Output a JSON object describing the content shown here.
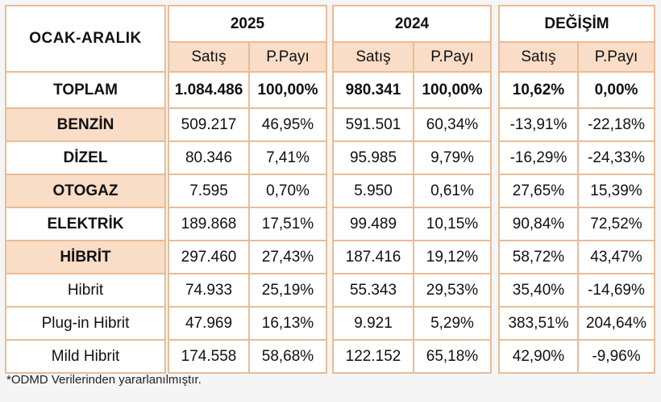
{
  "chart_data": {
    "type": "table",
    "title": "OCAK-ARALIK",
    "groups": [
      "2025",
      "2024",
      "DEĞİŞİM"
    ],
    "subheaders": [
      "Satış",
      "P.Payı"
    ],
    "rows": [
      {
        "label": "TOPLAM",
        "values": [
          "1.084.486",
          "100,00%",
          "980.341",
          "100,00%",
          "10,62%",
          "0,00%"
        ]
      },
      {
        "label": "BENZİN",
        "values": [
          "509.217",
          "46,95%",
          "591.501",
          "60,34%",
          "-13,91%",
          "-22,18%"
        ]
      },
      {
        "label": "DİZEL",
        "values": [
          "80.346",
          "7,41%",
          "95.985",
          "9,79%",
          "-16,29%",
          "-24,33%"
        ]
      },
      {
        "label": "OTOGAZ",
        "values": [
          "7.595",
          "0,70%",
          "5.950",
          "0,61%",
          "27,65%",
          "15,39%"
        ]
      },
      {
        "label": "ELEKTRİK",
        "values": [
          "189.868",
          "17,51%",
          "99.489",
          "10,15%",
          "90,84%",
          "72,52%"
        ]
      },
      {
        "label": "HİBRİT",
        "values": [
          "297.460",
          "27,43%",
          "187.416",
          "19,12%",
          "58,72%",
          "43,47%"
        ]
      },
      {
        "label": "Hibrit",
        "values": [
          "74.933",
          "25,19%",
          "55.343",
          "29,53%",
          "35,40%",
          "-14,69%"
        ]
      },
      {
        "label": "Plug-in Hibrit",
        "values": [
          "47.969",
          "16,13%",
          "9.921",
          "5,29%",
          "383,51%",
          "204,64%"
        ]
      },
      {
        "label": "Mild Hibrit",
        "values": [
          "174.558",
          "58,68%",
          "122.152",
          "65,18%",
          "42,90%",
          "-9,96%"
        ]
      }
    ],
    "footnote": "*ODMD Verilerinden yararlanılmıştır."
  },
  "colors": {
    "title": "#d22323",
    "header_fill": "#f9ddc6",
    "border": "#e8bc97"
  }
}
